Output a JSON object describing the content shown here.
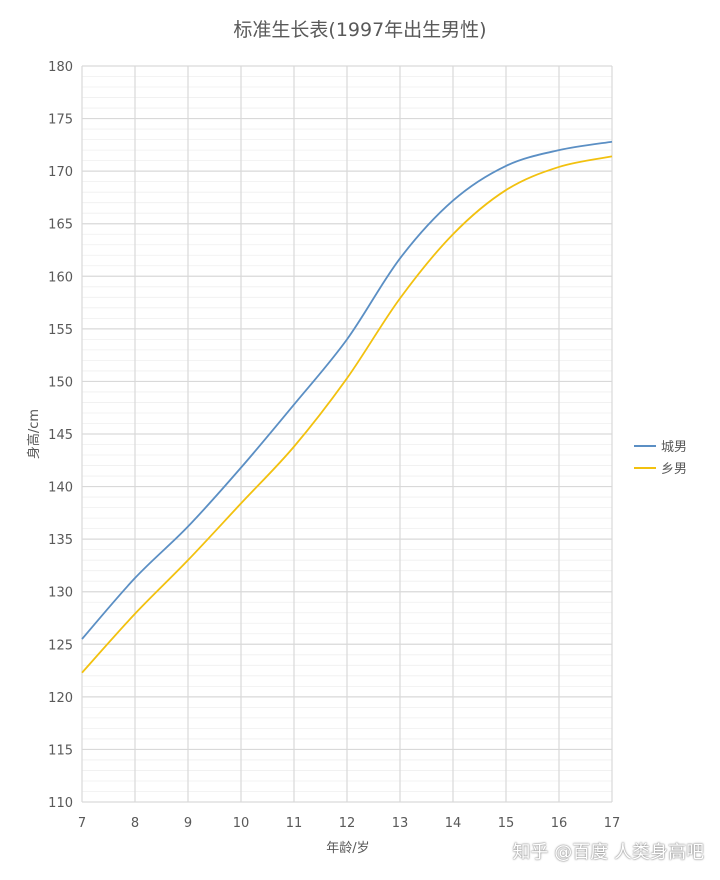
{
  "chart_data": {
    "type": "line",
    "title": "标准生长表(1997年出生男性)",
    "xlabel": "年龄/岁",
    "ylabel": "身高/cm",
    "x": [
      7,
      8,
      9,
      10,
      11,
      12,
      13,
      14,
      15,
      16,
      17
    ],
    "xlim": [
      7,
      17
    ],
    "ylim": [
      110,
      180
    ],
    "ytick_step": 5,
    "yminor_step": 1,
    "grid": true,
    "legend": "right",
    "series": [
      {
        "name": "城男",
        "color": "#5b8fc4",
        "values": [
          125.5,
          131.3,
          136.2,
          141.8,
          147.8,
          154.0,
          161.7,
          167.2,
          170.5,
          172.0,
          172.8
        ]
      },
      {
        "name": "乡男",
        "color": "#f2c10f",
        "values": [
          122.3,
          127.9,
          133.0,
          138.4,
          143.8,
          150.3,
          157.9,
          164.0,
          168.2,
          170.4,
          171.4
        ]
      }
    ]
  },
  "watermark": "知乎 @百度 人类身高吧"
}
